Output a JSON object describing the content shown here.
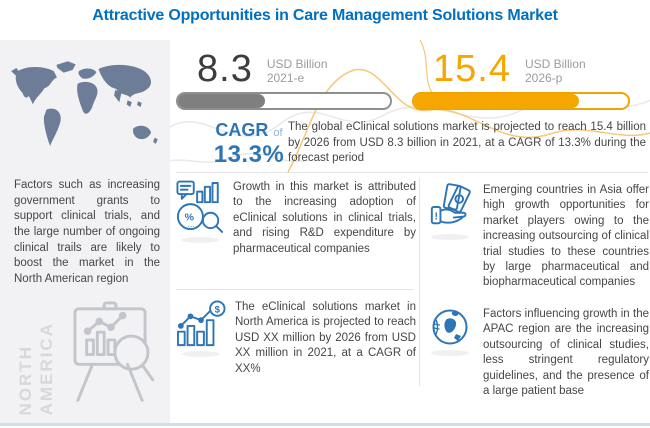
{
  "title": "Attractive Opportunities in Care Management Solutions Market",
  "chart_data": {
    "type": "bar",
    "title": "Attractive Opportunities in Care Management Solutions Market",
    "categories": [
      "2021-e",
      "2026-p"
    ],
    "values": [
      8.3,
      15.4
    ],
    "unit": "USD Billion",
    "cagr_percent": 13.3,
    "bar_fill_percent": [
      41,
      77
    ],
    "bar_colors": [
      "#7f7f7f",
      "#f5a700"
    ]
  },
  "stats": {
    "y2021": {
      "value": "8.3",
      "unit": "USD Billion",
      "period": "2021-e",
      "fill_pct": 41,
      "color": "#7f7f7f"
    },
    "y2026": {
      "value": "15.4",
      "unit": "USD Billion",
      "period": "2026-p",
      "fill_pct": 77,
      "color": "#f5a700"
    }
  },
  "cagr": {
    "label": "CAGR",
    "of_word": "of",
    "value": "13.3%"
  },
  "summary": "The global eClinical solutions market is projected to reach 15.4 billion by 2026 from USD 8.3 billion in 2021, at a CAGR of 13.3% during the forecast period",
  "sidebar": {
    "region_label_line1": "NORTH",
    "region_label_line2": "AMERICA",
    "text": "Factors such as increasing government grants to support clinical trials, and the large number of ongoing clinical trails are likely to boost the market in the North American region"
  },
  "panels": [
    {
      "icon": "growth-analysis-icon",
      "text": "Growth in this market is attributed to the increasing adoption of eClinical solutions in clinical trials, and rising R&D expenditure by pharmaceutical companies"
    },
    {
      "icon": "money-hand-icon",
      "text": "Emerging countries in Asia offer high growth opportunities for market players owing to the increasing outsourcing of clinical trial studies to these countries by large pharmaceutical and biopharmaceutical companies"
    },
    {
      "icon": "bar-chart-dollar-icon",
      "text": "The eClinical solutions market in North America is projected to reach USD XX million by 2026 from USD XX million in 2021, at a CAGR of XX%"
    },
    {
      "icon": "globe-icon",
      "text": "Factors influencing growth in the APAC region are the increasing outsourcing of clinical studies, less stringent regulatory guidelines, and the presence of a large patient base"
    }
  ],
  "colors": {
    "title_blue": "#0070c0",
    "accent_blue": "#2e75b5",
    "orange": "#f5a700",
    "gray_fill": "#7f7f7f",
    "body_text": "#454545",
    "sidebar_bg": "#f2f2f4",
    "map_fill": "#6d7d97",
    "watermark_gray": "#d7d8dc",
    "bottom_line": "#cfe0ea"
  }
}
